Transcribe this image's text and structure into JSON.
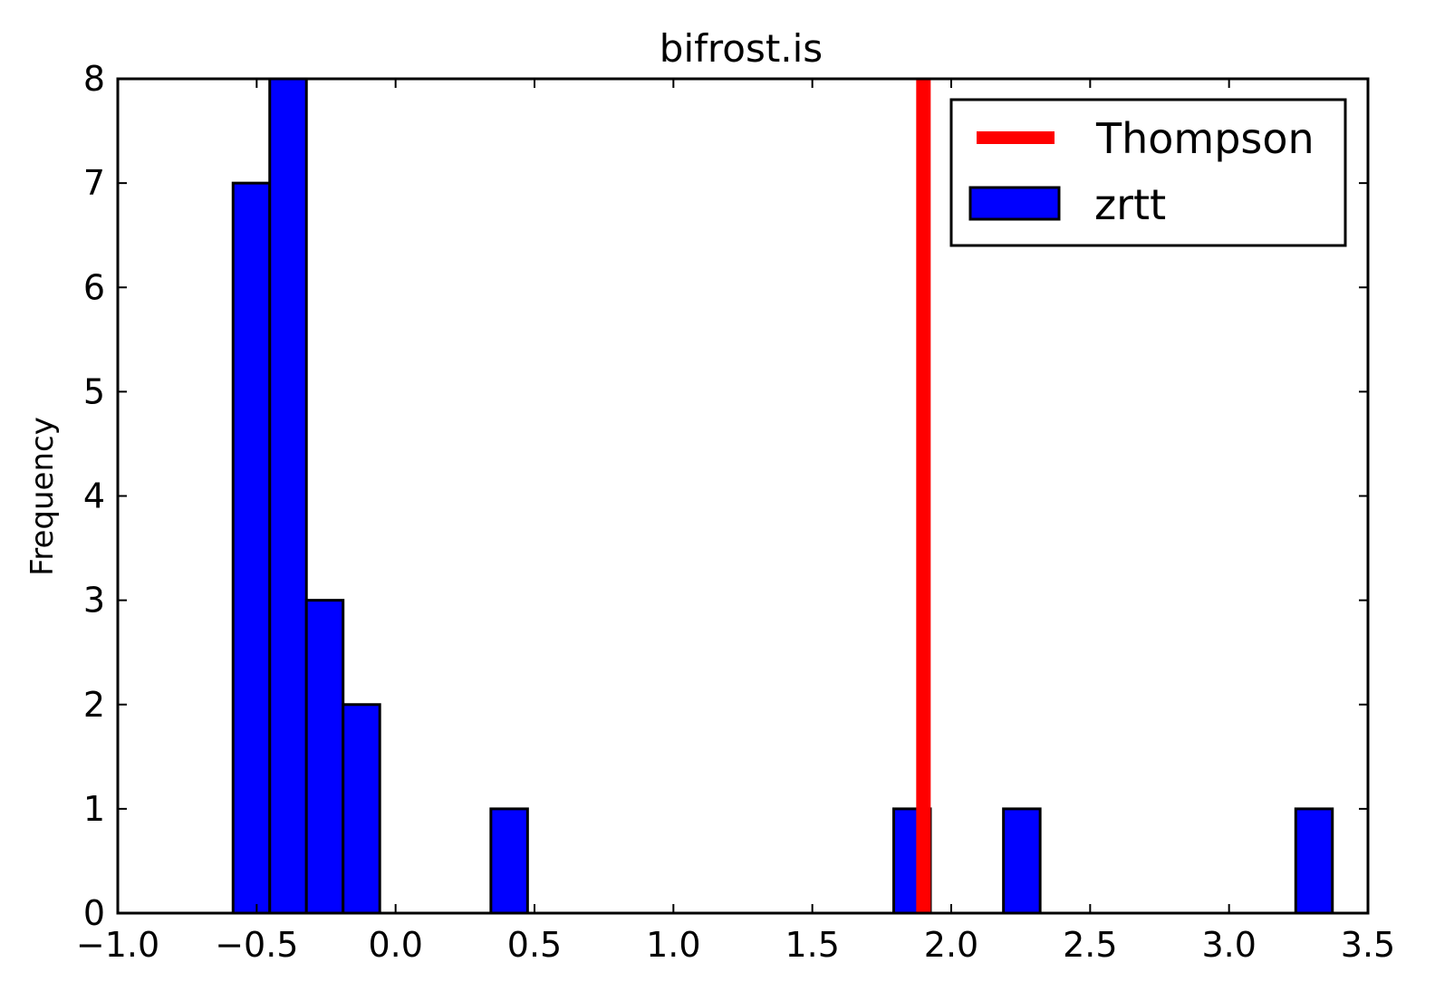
{
  "chart_data": {
    "type": "bar",
    "title": "bifrost.is",
    "xlabel": "",
    "ylabel": "Frequency",
    "xlim": [
      -1.0,
      3.5
    ],
    "ylim": [
      0,
      8
    ],
    "x_ticks": [
      "−1.0",
      "−0.5",
      "0.0",
      "0.5",
      "1.0",
      "1.5",
      "2.0",
      "2.5",
      "3.0",
      "3.5"
    ],
    "y_ticks": [
      "0",
      "1",
      "2",
      "3",
      "4",
      "5",
      "6",
      "7",
      "8"
    ],
    "x_tick_values": [
      -1.0,
      -0.5,
      0.0,
      0.5,
      1.0,
      1.5,
      2.0,
      2.5,
      3.0,
      3.5
    ],
    "y_tick_values": [
      0,
      1,
      2,
      3,
      4,
      5,
      6,
      7,
      8
    ],
    "grid": false,
    "legend_position": "top-right",
    "series": [
      {
        "name": "zrtt",
        "kind": "histogram",
        "color": "#0000ff",
        "bins": [
          {
            "start": -0.585,
            "end": -0.453,
            "count": 7
          },
          {
            "start": -0.453,
            "end": -0.321,
            "count": 8
          },
          {
            "start": -0.321,
            "end": -0.189,
            "count": 3
          },
          {
            "start": -0.189,
            "end": -0.057,
            "count": 2
          },
          {
            "start": 0.343,
            "end": 0.475,
            "count": 1
          },
          {
            "start": 1.793,
            "end": 1.925,
            "count": 1
          },
          {
            "start": 2.188,
            "end": 2.32,
            "count": 1
          },
          {
            "start": 3.24,
            "end": 3.372,
            "count": 1
          }
        ]
      },
      {
        "name": "Thompson",
        "kind": "vline",
        "color": "#ff0000",
        "x": 1.9
      }
    ]
  }
}
